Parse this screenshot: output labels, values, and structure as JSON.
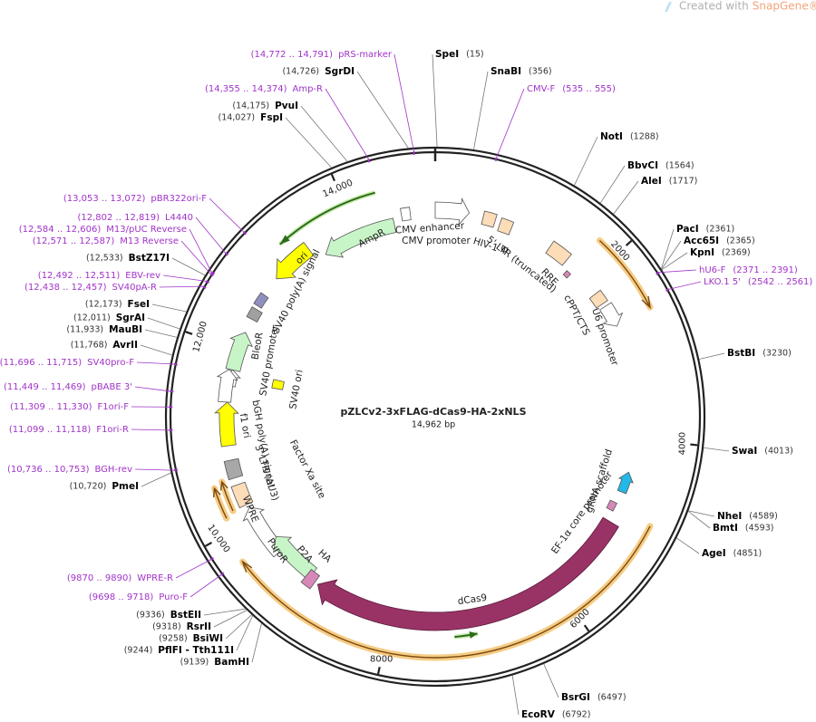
{
  "header": {
    "created_with": "Created with",
    "brand": "SnapGene®"
  },
  "map": {
    "name": "pZLCv2-3xFLAG-dCas9-HA-2xNLS",
    "length": "14,962 bp",
    "ruler_labels": [
      "2000",
      "4000",
      "6000",
      "8000",
      "10,000",
      "12,000",
      "14,000"
    ],
    "sites": [
      {
        "name": "SpeI",
        "position": "(15)"
      },
      {
        "name": "SnaBI",
        "position": "(356)"
      },
      {
        "name": "NotI",
        "position": "(1288)"
      },
      {
        "name": "BbvCI",
        "position": "(1564)"
      },
      {
        "name": "AleI",
        "position": "(1717)"
      },
      {
        "name": "PacI",
        "position": "(2361)"
      },
      {
        "name": "Acc65I",
        "position": "(2365)"
      },
      {
        "name": "KpnI",
        "position": "(2369)"
      },
      {
        "name": "BstBI",
        "position": "(3230)"
      },
      {
        "name": "SwaI",
        "position": "(4013)"
      },
      {
        "name": "NheI",
        "position": "(4589)"
      },
      {
        "name": "BmtI",
        "position": "(4593)"
      },
      {
        "name": "AgeI",
        "position": "(4851)"
      },
      {
        "name": "BsrGI",
        "position": "(6497)"
      },
      {
        "name": "EcoRV",
        "position": "(6792)"
      },
      {
        "name": "SgrDI",
        "position": "(14,726)"
      },
      {
        "name": "PvuI",
        "position": "(14,175)"
      },
      {
        "name": "FspI",
        "position": "(14,027)"
      },
      {
        "name": "BstZ17I",
        "position": "(12,533)"
      },
      {
        "name": "FseI",
        "position": "(12,173)"
      },
      {
        "name": "SgrAI",
        "position": "(12,011)"
      },
      {
        "name": "MauBI",
        "position": "(11,933)"
      },
      {
        "name": "AvrII",
        "position": "(11,768)"
      },
      {
        "name": "PmeI",
        "position": "(10,720)"
      },
      {
        "name": "BstEII",
        "position": "(9336)"
      },
      {
        "name": "RsrII",
        "position": "(9318)"
      },
      {
        "name": "BsiWI",
        "position": "(9258)"
      },
      {
        "name": "PflFI - Tth111I",
        "position": "(9244)"
      },
      {
        "name": "BamHI",
        "position": "(9139)"
      }
    ],
    "primers": [
      {
        "name": "pRS-marker",
        "range": "(14,772 .. 14,791)"
      },
      {
        "name": "Amp-R",
        "range": "(14,355 .. 14,374)"
      },
      {
        "name": "CMV-F",
        "range": "(535 .. 555)"
      },
      {
        "name": "hU6-F",
        "range": "(2371 .. 2391)"
      },
      {
        "name": "LKO.1 5'",
        "range": "(2542 .. 2561)"
      },
      {
        "name": "pBR322ori-F",
        "range": "(13,053 .. 13,072)"
      },
      {
        "name": "L4440",
        "range": "(12,802 .. 12,819)"
      },
      {
        "name": "M13/pUC Reverse",
        "range": "(12,584 .. 12,606)"
      },
      {
        "name": "M13 Reverse",
        "range": "(12,571 .. 12,587)"
      },
      {
        "name": "EBV-rev",
        "range": "(12,492 .. 12,511)"
      },
      {
        "name": "SV40pA-R",
        "range": "(12,438 .. 12,457)"
      },
      {
        "name": "SV40pro-F",
        "range": "(11,696 .. 11,715)"
      },
      {
        "name": "pBABE 3'",
        "range": "(11,449 .. 11,469)"
      },
      {
        "name": "F1ori-F",
        "range": "(11,309 .. 11,330)"
      },
      {
        "name": "F1ori-R",
        "range": "(11,099 .. 11,118)"
      },
      {
        "name": "BGH-rev",
        "range": "(10,736 .. 10,753)"
      },
      {
        "name": "WPRE-R",
        "range": "(9870 .. 9890)"
      },
      {
        "name": "Puro-F",
        "range": "(9698 .. 9718)"
      }
    ],
    "features": [
      "AmpR",
      "ori",
      "CMV enhancer",
      "CMV promoter",
      "HIV-1 Ψ",
      "5' LTR (truncated)",
      "RRE",
      "cPPT/CTS",
      "U6 promoter",
      "SV40 poly(A) signal",
      "BleoR",
      "SV40 promoter",
      "SV40 ori",
      "bGH poly(A) signal",
      "f1 ori",
      "3' LTR (ΔU3)",
      "WPRE",
      "PuroR",
      "P2A",
      "HA",
      "Factor Xa site",
      "gRNA scaffold",
      "EF-1α core promoter",
      "dCas9"
    ]
  }
}
